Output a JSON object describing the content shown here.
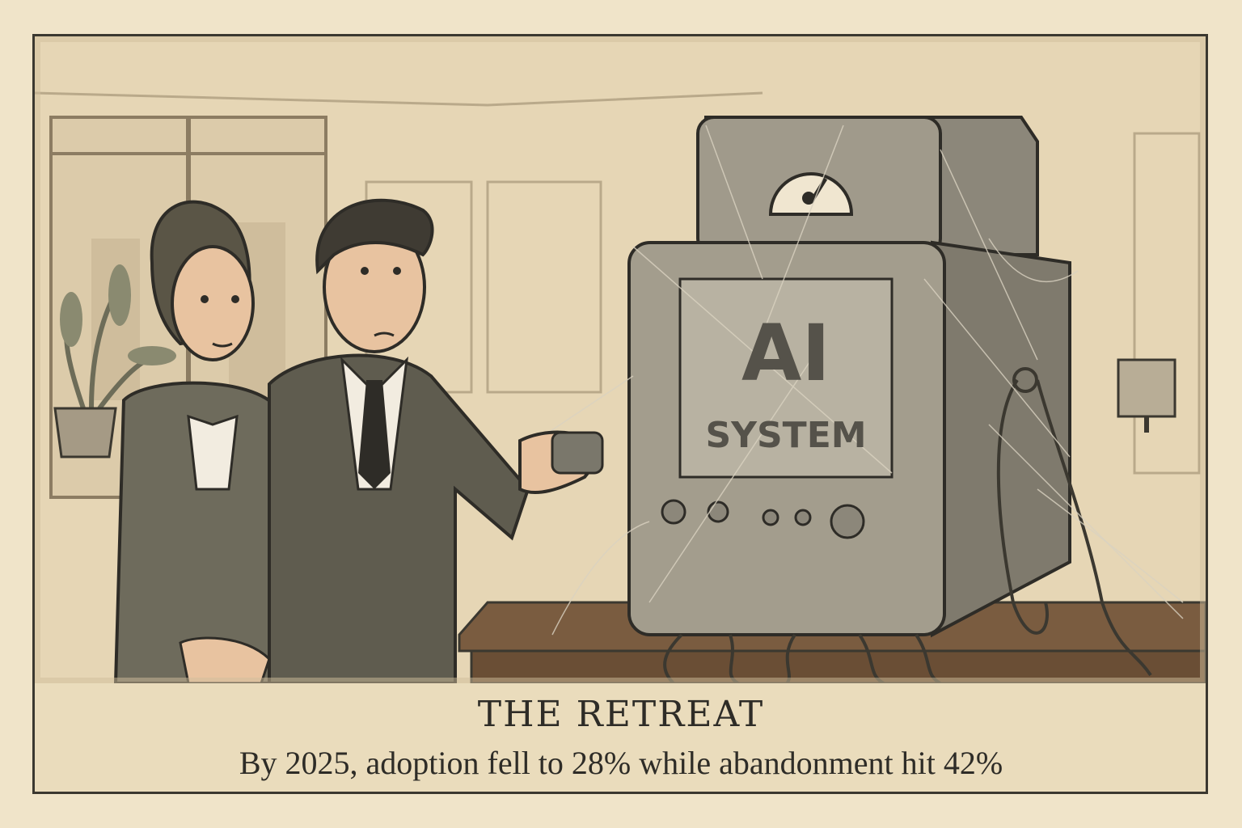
{
  "panel": {
    "machine_label_main": "AI",
    "machine_label_sub": "SYSTEM",
    "caption_title": "THE RETREAT",
    "caption_subtitle": "By 2025, adoption fell to 28% while abandonment hit 42%"
  },
  "colors": {
    "paper": "#f0e4c9",
    "ink": "#2e2c27",
    "suit": "#6e6b5c",
    "skin": "#e8c3a0",
    "machine": "#9a9485",
    "desk": "#7a5c40"
  }
}
